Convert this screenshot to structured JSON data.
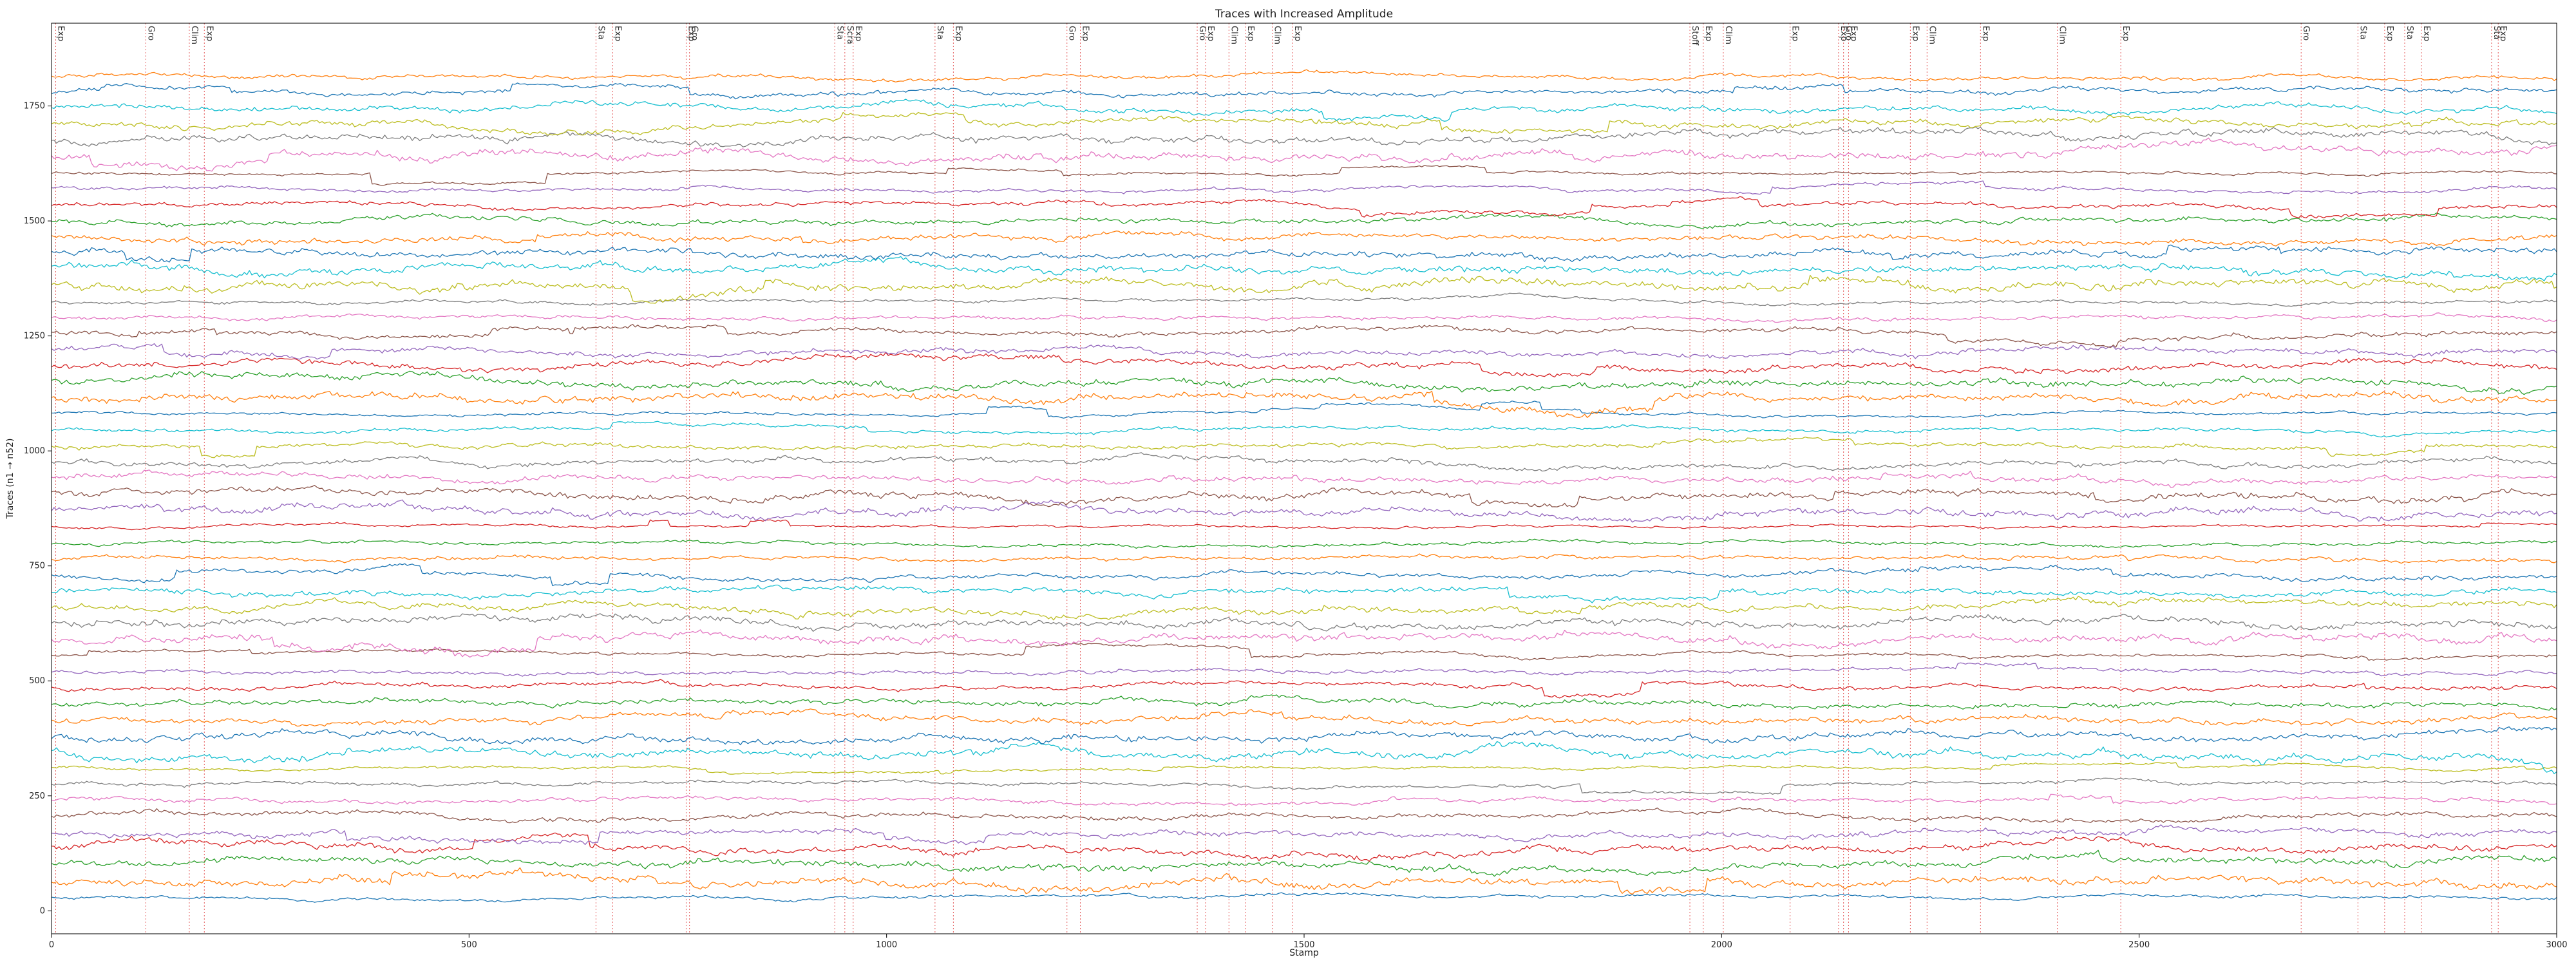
{
  "chart_data": {
    "type": "line",
    "title": "Traces with Increased Amplitude",
    "xlabel": "Stamp",
    "ylabel": "Traces (n1 → n52)",
    "xlim": [
      0,
      3000
    ],
    "ylim": [
      -50,
      1930
    ],
    "x_ticks": [
      0,
      500,
      1000,
      1500,
      2000,
      2500,
      3000
    ],
    "y_ticks": [
      0,
      250,
      500,
      750,
      1000,
      1250,
      1500,
      1750
    ],
    "grid": false,
    "series_count": 52,
    "series_spacing": 35,
    "series_first_offset": 30,
    "palette": [
      "#1f77b4",
      "#ff7f0e",
      "#2ca02c",
      "#d62728",
      "#9467bd",
      "#8c564b",
      "#e377c2",
      "#7f7f7f",
      "#bcbd22",
      "#17becf"
    ],
    "event_color": "#e04040",
    "events": [
      {
        "x": 5,
        "label": "Exp"
      },
      {
        "x": 113,
        "label": "Gro"
      },
      {
        "x": 165,
        "label": "Clim"
      },
      {
        "x": 183,
        "label": "Exp"
      },
      {
        "x": 652,
        "label": "Sta"
      },
      {
        "x": 672,
        "label": "Exp"
      },
      {
        "x": 760,
        "label": "Exp"
      },
      {
        "x": 764,
        "label": "Gro"
      },
      {
        "x": 938,
        "label": "Sta"
      },
      {
        "x": 950,
        "label": "Scra"
      },
      {
        "x": 960,
        "label": "Exp"
      },
      {
        "x": 1058,
        "label": "Sta"
      },
      {
        "x": 1080,
        "label": "Exp"
      },
      {
        "x": 1216,
        "label": "Gro"
      },
      {
        "x": 1232,
        "label": "Exp"
      },
      {
        "x": 1372,
        "label": "Gro"
      },
      {
        "x": 1382,
        "label": "Exp"
      },
      {
        "x": 1410,
        "label": "Clim"
      },
      {
        "x": 1430,
        "label": "Exp"
      },
      {
        "x": 1462,
        "label": "Clim"
      },
      {
        "x": 1486,
        "label": "Exp"
      },
      {
        "x": 1962,
        "label": "Stoff"
      },
      {
        "x": 1978,
        "label": "Exp"
      },
      {
        "x": 2002,
        "label": "Clim"
      },
      {
        "x": 2082,
        "label": "Exp"
      },
      {
        "x": 2140,
        "label": "Exp"
      },
      {
        "x": 2146,
        "label": "Gro"
      },
      {
        "x": 2152,
        "label": "Exp"
      },
      {
        "x": 2226,
        "label": "Exp"
      },
      {
        "x": 2246,
        "label": "Clim"
      },
      {
        "x": 2310,
        "label": "Exp"
      },
      {
        "x": 2402,
        "label": "Clim"
      },
      {
        "x": 2478,
        "label": "Exp"
      },
      {
        "x": 2694,
        "label": "Gro"
      },
      {
        "x": 2762,
        "label": "Sta"
      },
      {
        "x": 2794,
        "label": "Exp"
      },
      {
        "x": 2818,
        "label": "Sta"
      },
      {
        "x": 2838,
        "label": "Exp"
      },
      {
        "x": 2922,
        "label": "Sta"
      },
      {
        "x": 2930,
        "label": "Exp"
      }
    ]
  }
}
